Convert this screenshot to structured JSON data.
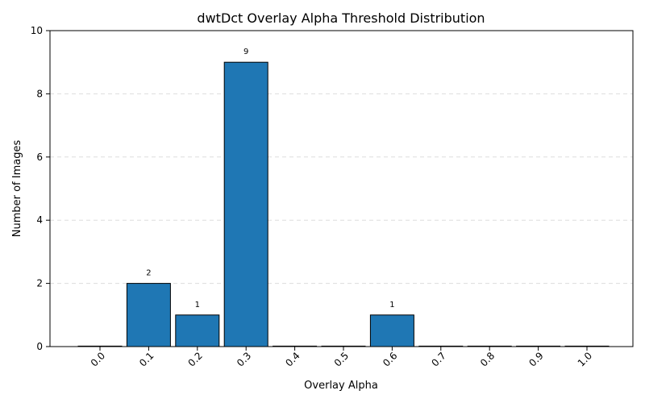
{
  "chart_data": {
    "type": "bar",
    "title": "dwtDct Overlay Alpha Threshold Distribution",
    "xlabel": "Overlay Alpha",
    "ylabel": "Number of Images",
    "categories": [
      "0.0",
      "0.1",
      "0.2",
      "0.3",
      "0.4",
      "0.5",
      "0.6",
      "0.7",
      "0.8",
      "0.9",
      "1.0"
    ],
    "values": [
      0,
      2,
      1,
      9,
      0,
      0,
      1,
      0,
      0,
      0,
      0
    ],
    "data_labels": [
      "",
      "2",
      "1",
      "9",
      "",
      "",
      "1",
      "",
      "",
      "",
      ""
    ],
    "ylim": [
      0,
      10
    ],
    "yticks": [
      0,
      2,
      4,
      6,
      8,
      10
    ],
    "grid": "y-axis dashed",
    "colors": {
      "bar_fill": "#1f77b4",
      "bar_edge": "#000000",
      "grid": "#dddddd"
    }
  }
}
